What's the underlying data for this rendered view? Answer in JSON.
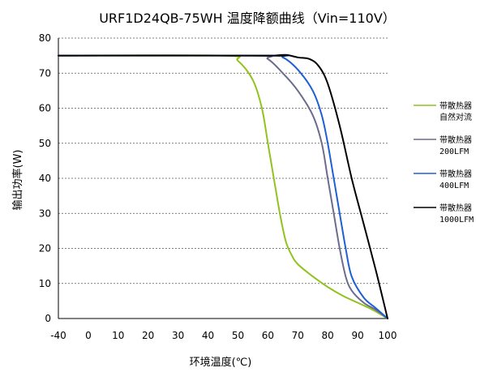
{
  "chart_data": {
    "type": "line",
    "title": "URF1D24QB-75WH 温度降额曲线（Vin=110V）",
    "xlabel": "环境温度(℃)",
    "ylabel": "输出功率(W)",
    "xlim": [
      -40,
      100
    ],
    "ylim": [
      0,
      80
    ],
    "xticks": [
      "-40",
      "0",
      "10",
      "20",
      "30",
      "40",
      "50",
      "60",
      "70",
      "80",
      "90",
      "100"
    ],
    "yticks": [
      "0",
      "10",
      "20",
      "30",
      "40",
      "50",
      "60",
      "70",
      "80"
    ],
    "grid": "horizontal-dashed",
    "legend_position": "right",
    "series": [
      {
        "name": "带散热器",
        "name2": "自然对流",
        "color": "#92c21e",
        "points": [
          [
            -40,
            75
          ],
          [
            45,
            75
          ],
          [
            50,
            73.5
          ],
          [
            55,
            68
          ],
          [
            58,
            60
          ],
          [
            60,
            50
          ],
          [
            62,
            40
          ],
          [
            64,
            30
          ],
          [
            66,
            22
          ],
          [
            68,
            18
          ],
          [
            70,
            15.5
          ],
          [
            75,
            12
          ],
          [
            80,
            9
          ],
          [
            85,
            6.5
          ],
          [
            90,
            4.5
          ],
          [
            95,
            2.5
          ],
          [
            100,
            0
          ]
        ]
      },
      {
        "name": "带散热器",
        "name2": "200LFM",
        "color": "#6b6b8e",
        "points": [
          [
            -40,
            75
          ],
          [
            55,
            75
          ],
          [
            60,
            74
          ],
          [
            65,
            70
          ],
          [
            70,
            65
          ],
          [
            75,
            58
          ],
          [
            78,
            50
          ],
          [
            80,
            40
          ],
          [
            82,
            30
          ],
          [
            84,
            20
          ],
          [
            86,
            12
          ],
          [
            88,
            8
          ],
          [
            92,
            4.5
          ],
          [
            96,
            2.5
          ],
          [
            100,
            0
          ]
        ]
      },
      {
        "name": "带散热器",
        "name2": "400LFM",
        "color": "#1f5fd4",
        "points": [
          [
            -40,
            75
          ],
          [
            60,
            75
          ],
          [
            65,
            74.5
          ],
          [
            70,
            71
          ],
          [
            75,
            65
          ],
          [
            78,
            58
          ],
          [
            80,
            50
          ],
          [
            82,
            40
          ],
          [
            84,
            30
          ],
          [
            86,
            20
          ],
          [
            88,
            12
          ],
          [
            92,
            6
          ],
          [
            96,
            3
          ],
          [
            100,
            0
          ]
        ]
      },
      {
        "name": "带散热器",
        "name2": "1000LFM",
        "color": "#000000",
        "points": [
          [
            -40,
            75
          ],
          [
            60,
            75
          ],
          [
            62,
            75
          ],
          [
            66,
            75.2
          ],
          [
            70,
            74.5
          ],
          [
            74,
            74
          ],
          [
            77,
            72
          ],
          [
            80,
            67
          ],
          [
            84,
            55
          ],
          [
            88,
            40
          ],
          [
            92,
            27
          ],
          [
            96,
            14
          ],
          [
            100,
            0
          ]
        ]
      }
    ]
  }
}
